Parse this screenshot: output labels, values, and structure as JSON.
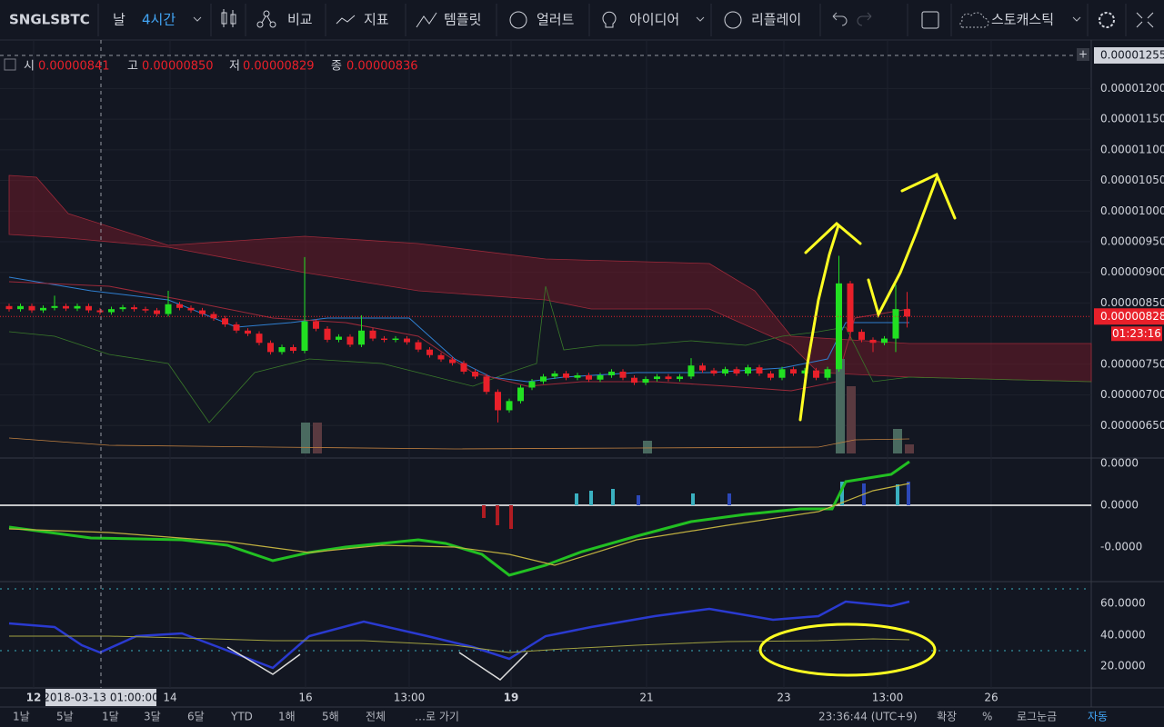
{
  "toolbar": {
    "symbol": "SNGLSBTC",
    "day": "날",
    "interval": "4시간",
    "compare": "비교",
    "indicators": "지표",
    "templates": "템플릿",
    "alerts": "얼러트",
    "ideas": "아이디어",
    "replay": "리플레이",
    "study": "스토캐스틱"
  },
  "legend": {
    "open_label": "시",
    "open": "0.00000841",
    "high_label": "고",
    "high": "0.00000850",
    "low_label": "저",
    "low": "0.00000829",
    "close_label": "종",
    "close": "0.00000836"
  },
  "crosshair_price": "0.00001255",
  "last_price": "0.00000828",
  "countdown": "01:23:16",
  "crosshair_time": "2018-03-13 01:00:00",
  "chart_data": {
    "type": "candlestick",
    "ylim": [
      6.03e-06,
      1.2525e-05
    ],
    "yticks": [
      {
        "value": 6.5e-06,
        "label": "0.00000650"
      },
      {
        "value": 7e-06,
        "label": "0.00000700"
      },
      {
        "value": 7.5e-06,
        "label": "0.00000750"
      },
      {
        "value": 8.5e-06,
        "label": "0.00000850"
      },
      {
        "value": 9e-06,
        "label": "0.00000900"
      },
      {
        "value": 9.5e-06,
        "label": "0.00000950"
      },
      {
        "value": 1e-05,
        "label": "0.00001000"
      },
      {
        "value": 1.05e-05,
        "label": "0.00001050"
      },
      {
        "value": 1.1e-05,
        "label": "0.00001100"
      },
      {
        "value": 1.15e-05,
        "label": "0.00001150"
      },
      {
        "value": 1.2e-05,
        "label": "0.00001200"
      }
    ],
    "candles": [
      [
        8.45e-06,
        8.49e-06,
        8.36e-06,
        8.4e-06
      ],
      [
        8.4e-06,
        8.49e-06,
        8.36e-06,
        8.45e-06
      ],
      [
        8.45e-06,
        8.49e-06,
        8.34e-06,
        8.38e-06
      ],
      [
        8.38e-06,
        8.46e-06,
        8.34e-06,
        8.42e-06
      ],
      [
        8.42e-06,
        8.62e-06,
        8.38e-06,
        8.45e-06
      ],
      [
        8.45e-06,
        8.49e-06,
        8.37e-06,
        8.41e-06
      ],
      [
        8.41e-06,
        8.49e-06,
        8.37e-06,
        8.45e-06
      ],
      [
        8.45e-06,
        8.49e-06,
        8.34e-06,
        8.38e-06
      ],
      [
        8.38e-06,
        8.42e-06,
        8.31e-06,
        8.35e-06
      ],
      [
        8.35e-06,
        8.44e-06,
        8.31e-06,
        8.4e-06
      ],
      [
        8.4e-06,
        8.47e-06,
        8.36e-06,
        8.43e-06
      ],
      [
        8.43e-06,
        8.47e-06,
        8.36e-06,
        8.4e-06
      ],
      [
        8.4e-06,
        8.44e-06,
        8.34e-06,
        8.38e-06
      ],
      [
        8.38e-06,
        8.42e-06,
        8.28e-06,
        8.32e-06
      ],
      [
        8.32e-06,
        8.7e-06,
        8.28e-06,
        8.48e-06
      ],
      [
        8.48e-06,
        8.52e-06,
        8.38e-06,
        8.42e-06
      ],
      [
        8.42e-06,
        8.46e-06,
        8.34e-06,
        8.38e-06
      ],
      [
        8.38e-06,
        8.42e-06,
        8.28e-06,
        8.32e-06
      ],
      [
        8.32e-06,
        8.36e-06,
        8.21e-06,
        8.25e-06
      ],
      [
        8.25e-06,
        8.29e-06,
        8.11e-06,
        8.15e-06
      ],
      [
        8.15e-06,
        8.19e-06,
        8.01e-06,
        8.05e-06
      ],
      [
        8.05e-06,
        8.09e-06,
        7.96e-06,
        8e-06
      ],
      [
        8e-06,
        8.04e-06,
        7.81e-06,
        7.85e-06
      ],
      [
        7.85e-06,
        7.89e-06,
        7.66e-06,
        7.7e-06
      ],
      [
        7.7e-06,
        7.82e-06,
        7.66e-06,
        7.78e-06
      ],
      [
        7.78e-06,
        7.82e-06,
        7.68e-06,
        7.72e-06
      ],
      [
        7.72e-06,
        9.25e-06,
        7.68e-06,
        8.2e-06
      ],
      [
        8.2e-06,
        8.24e-06,
        8.04e-06,
        8.08e-06
      ],
      [
        8.08e-06,
        8.12e-06,
        7.86e-06,
        7.9e-06
      ],
      [
        7.9e-06,
        7.99e-06,
        7.86e-06,
        7.95e-06
      ],
      [
        7.95e-06,
        7.99e-06,
        7.78e-06,
        7.82e-06
      ],
      [
        7.82e-06,
        8.3e-06,
        7.78e-06,
        8.05e-06
      ],
      [
        8.05e-06,
        8.09e-06,
        7.88e-06,
        7.92e-06
      ],
      [
        7.92e-06,
        7.96e-06,
        7.86e-06,
        7.9e-06
      ],
      [
        7.9e-06,
        7.96e-06,
        7.86e-06,
        7.92e-06
      ],
      [
        7.92e-06,
        7.96e-06,
        7.82e-06,
        7.86e-06
      ],
      [
        7.86e-06,
        7.9e-06,
        7.7e-06,
        7.74e-06
      ],
      [
        7.74e-06,
        7.78e-06,
        7.61e-06,
        7.65e-06
      ],
      [
        7.65e-06,
        7.69e-06,
        7.54e-06,
        7.58e-06
      ],
      [
        7.58e-06,
        7.62e-06,
        7.48e-06,
        7.52e-06
      ],
      [
        7.52e-06,
        7.56e-06,
        7.34e-06,
        7.38e-06
      ],
      [
        7.38e-06,
        7.42e-06,
        7.26e-06,
        7.3e-06
      ],
      [
        7.3e-06,
        7.34e-06,
        7.01e-06,
        7.05e-06
      ],
      [
        7.05e-06,
        7.09e-06,
        6.55e-06,
        6.75e-06
      ],
      [
        6.75e-06,
        6.94e-06,
        6.71e-06,
        6.9e-06
      ],
      [
        6.9e-06,
        7.16e-06,
        6.86e-06,
        7.12e-06
      ],
      [
        7.12e-06,
        7.26e-06,
        7.08e-06,
        7.22e-06
      ],
      [
        7.22e-06,
        7.34e-06,
        7.18e-06,
        7.3e-06
      ],
      [
        7.3e-06,
        7.39e-06,
        7.26e-06,
        7.35e-06
      ],
      [
        7.35e-06,
        7.39e-06,
        7.24e-06,
        7.28e-06
      ],
      [
        7.28e-06,
        7.36e-06,
        7.24e-06,
        7.32e-06
      ],
      [
        7.32e-06,
        7.36e-06,
        7.21e-06,
        7.25e-06
      ],
      [
        7.25e-06,
        7.36e-06,
        7.21e-06,
        7.32e-06
      ],
      [
        7.32e-06,
        7.42e-06,
        7.28e-06,
        7.38e-06
      ],
      [
        7.38e-06,
        7.42e-06,
        7.24e-06,
        7.28e-06
      ],
      [
        7.28e-06,
        7.32e-06,
        7.16e-06,
        7.2e-06
      ],
      [
        7.2e-06,
        7.3e-06,
        7.16e-06,
        7.26e-06
      ],
      [
        7.26e-06,
        7.34e-06,
        7.22e-06,
        7.3e-06
      ],
      [
        7.3e-06,
        7.34e-06,
        7.22e-06,
        7.26e-06
      ],
      [
        7.26e-06,
        7.34e-06,
        7.22e-06,
        7.3e-06
      ],
      [
        7.3e-06,
        7.6e-06,
        7.26e-06,
        7.48e-06
      ],
      [
        7.48e-06,
        7.52e-06,
        7.36e-06,
        7.4e-06
      ],
      [
        7.4e-06,
        7.44e-06,
        7.31e-06,
        7.35e-06
      ],
      [
        7.35e-06,
        7.46e-06,
        7.31e-06,
        7.42e-06
      ],
      [
        7.42e-06,
        7.46e-06,
        7.31e-06,
        7.35e-06
      ],
      [
        7.35e-06,
        7.49e-06,
        7.31e-06,
        7.45e-06
      ],
      [
        7.45e-06,
        7.49e-06,
        7.31e-06,
        7.35e-06
      ],
      [
        7.35e-06,
        7.39e-06,
        7.24e-06,
        7.28e-06
      ],
      [
        7.28e-06,
        7.46e-06,
        7.24e-06,
        7.42e-06
      ],
      [
        7.42e-06,
        7.46e-06,
        7.31e-06,
        7.35e-06
      ],
      [
        7.35e-06,
        7.44e-06,
        7.31e-06,
        7.4e-06
      ],
      [
        7.4e-06,
        7.44e-06,
        7.24e-06,
        7.28e-06
      ],
      [
        7.28e-06,
        7.46e-06,
        7.24e-06,
        7.42e-06
      ],
      [
        7.42e-06,
        9.27e-06,
        7.38e-06,
        8.82e-06
      ],
      [
        8.82e-06,
        8.86e-06,
        7.9e-06,
        8.03e-06
      ],
      [
        8.03e-06,
        8.07e-06,
        7.86e-06,
        7.9e-06
      ],
      [
        7.9e-06,
        7.94e-06,
        7.7e-06,
        7.85e-06
      ],
      [
        7.85e-06,
        7.96e-06,
        7.81e-06,
        7.92e-06
      ],
      [
        7.92e-06,
        8.8e-06,
        7.7e-06,
        8.4e-06
      ],
      [
        8.4e-06,
        8.68e-06,
        8.1e-06,
        8.28e-06
      ]
    ],
    "up_color": "#22e022",
    "down_color": "#e8202a"
  },
  "macd_axis": [
    "0.0000",
    "0.0000",
    "-0.0000"
  ],
  "stoch_axis": [
    "60.0000",
    "40.0000",
    "20.0000"
  ],
  "time_axis": [
    "12",
    "14",
    "16",
    "13:00",
    "19",
    "21",
    "23",
    "13:00",
    "26"
  ],
  "bottom_bar": {
    "ranges": [
      "1날",
      "5날",
      "1달",
      "3달",
      "6달",
      "YTD",
      "1해",
      "5해",
      "전체",
      "…로 가기"
    ],
    "clock": "23:36:44 (UTC+9)",
    "options": [
      "확장",
      "%",
      "로그눈금",
      "자동"
    ]
  }
}
